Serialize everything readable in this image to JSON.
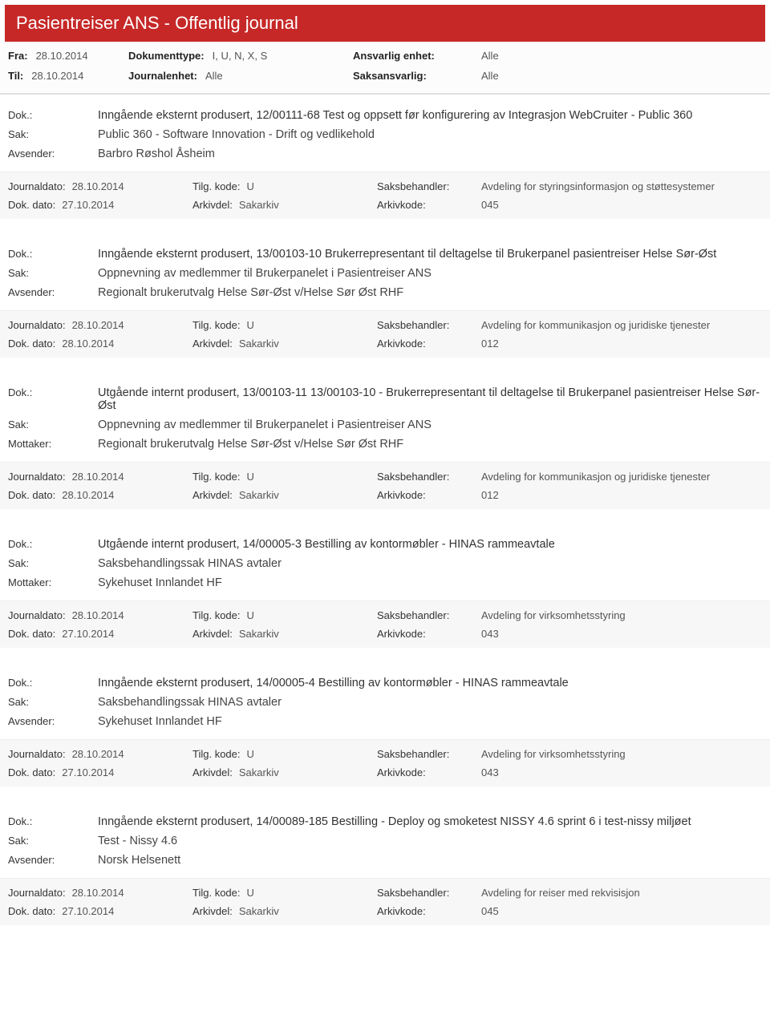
{
  "title": "Pasientreiser ANS - Offentlig journal",
  "filters": {
    "fra_label": "Fra:",
    "fra_value": "28.10.2014",
    "til_label": "Til:",
    "til_value": "28.10.2014",
    "dokumenttype_label": "Dokumenttype:",
    "dokumenttype_value": "I, U, N, X, S",
    "journalenhet_label": "Journalenhet:",
    "journalenhet_value": "Alle",
    "ansvarlig_label": "Ansvarlig enhet:",
    "ansvarlig_value": "Alle",
    "saksansvarlig_label": "Saksansvarlig:",
    "saksansvarlig_value": "Alle"
  },
  "labels": {
    "dok": "Dok.:",
    "sak": "Sak:",
    "avsender": "Avsender:",
    "mottaker": "Mottaker:",
    "journaldato": "Journaldato:",
    "dokdato": "Dok. dato:",
    "tilgkode": "Tilg. kode:",
    "arkivdel": "Arkivdel:",
    "saksbehandler": "Saksbehandler:",
    "arkivkode": "Arkivkode:"
  },
  "entries": [
    {
      "dok": "Inngående eksternt produsert, 12/00111-68 Test og oppsett  før konfigurering av Integrasjon WebCruiter - Public 360",
      "sak": "Public 360 - Software Innovation - Drift og vedlikehold",
      "party_label": "Avsender:",
      "party_value": "Barbro Røshol Åsheim",
      "journaldato": "28.10.2014",
      "tilgkode": "U",
      "saksbehandler": "Avdeling for styringsinformasjon og støttesystemer",
      "dokdato": "27.10.2014",
      "arkivdel": "Sakarkiv",
      "arkivkode": "045"
    },
    {
      "dok": "Inngående eksternt produsert, 13/00103-10 Brukerrepresentant til deltagelse til Brukerpanel pasientreiser Helse Sør-Øst",
      "sak": "Oppnevning av medlemmer til Brukerpanelet i Pasientreiser ANS",
      "party_label": "Avsender:",
      "party_value": "Regionalt brukerutvalg Helse Sør-Øst v/Helse Sør Øst RHF",
      "journaldato": "28.10.2014",
      "tilgkode": "U",
      "saksbehandler": "Avdeling for kommunikasjon og juridiske tjenester",
      "dokdato": "28.10.2014",
      "arkivdel": "Sakarkiv",
      "arkivkode": "012"
    },
    {
      "dok": "Utgående internt produsert, 13/00103-11 13/00103-10 - Brukerrepresentant til deltagelse til Brukerpanel pasientreiser Helse Sør-Øst",
      "sak": "Oppnevning av medlemmer til Brukerpanelet i Pasientreiser ANS",
      "party_label": "Mottaker:",
      "party_value": "Regionalt brukerutvalg Helse Sør-Øst v/Helse Sør Øst RHF",
      "journaldato": "28.10.2014",
      "tilgkode": "U",
      "saksbehandler": "Avdeling for kommunikasjon og juridiske tjenester",
      "dokdato": "28.10.2014",
      "arkivdel": "Sakarkiv",
      "arkivkode": "012"
    },
    {
      "dok": "Utgående internt produsert, 14/00005-3 Bestilling av kontormøbler - HINAS rammeavtale",
      "sak": "Saksbehandlingssak HINAS avtaler",
      "party_label": "Mottaker:",
      "party_value": "Sykehuset Innlandet HF",
      "journaldato": "28.10.2014",
      "tilgkode": "U",
      "saksbehandler": "Avdeling for virksomhetsstyring",
      "dokdato": "27.10.2014",
      "arkivdel": "Sakarkiv",
      "arkivkode": "043"
    },
    {
      "dok": "Inngående eksternt produsert, 14/00005-4 Bestilling av kontormøbler - HINAS rammeavtale",
      "sak": "Saksbehandlingssak HINAS avtaler",
      "party_label": "Avsender:",
      "party_value": "Sykehuset Innlandet HF",
      "journaldato": "28.10.2014",
      "tilgkode": "U",
      "saksbehandler": "Avdeling for virksomhetsstyring",
      "dokdato": "27.10.2014",
      "arkivdel": "Sakarkiv",
      "arkivkode": "043"
    },
    {
      "dok": "Inngående eksternt produsert, 14/00089-185 Bestilling - Deploy og smoketest NISSY 4.6 sprint 6 i test-nissy miljøet",
      "sak": "Test - Nissy 4.6",
      "party_label": "Avsender:",
      "party_value": "Norsk Helsenett",
      "journaldato": "28.10.2014",
      "tilgkode": "U",
      "saksbehandler": "Avdeling for reiser med rekvisisjon",
      "dokdato": "27.10.2014",
      "arkivdel": "Sakarkiv",
      "arkivkode": "045"
    }
  ]
}
